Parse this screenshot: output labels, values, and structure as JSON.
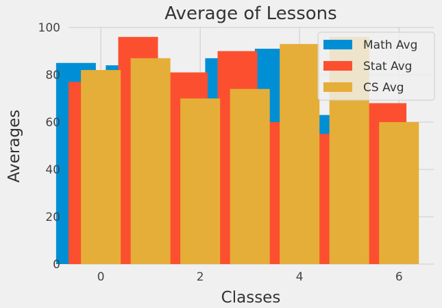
{
  "chart_data": {
    "type": "bar",
    "title": "Average of Lessons",
    "xlabel": "Classes",
    "ylabel": "Averages",
    "xlim": [
      -0.65,
      6.7
    ],
    "ylim": [
      0,
      100
    ],
    "xticks": [
      0,
      2,
      4,
      6
    ],
    "yticks": [
      0,
      20,
      40,
      60,
      80,
      100
    ],
    "bar_width": 0.8,
    "grid": true,
    "legend_position": "top-right",
    "series": [
      {
        "name": "Math Avg",
        "color": "#008fd5",
        "x": [
          0,
          1,
          2,
          3,
          4,
          5,
          6
        ],
        "values": [
          85,
          84,
          77,
          87,
          91,
          63,
          60
        ],
        "offset": -0.5
      },
      {
        "name": "Stat Avg",
        "color": "#fc4f30",
        "x": [
          0,
          1,
          2,
          3,
          4,
          5,
          6
        ],
        "values": [
          77,
          96,
          81,
          90,
          60,
          55,
          68
        ],
        "offset": -0.25
      },
      {
        "name": "CS Avg",
        "color": "#e5ae38",
        "x": [
          0,
          1,
          2,
          3,
          4,
          5,
          6
        ],
        "values": [
          82,
          87,
          70,
          74,
          93,
          96,
          60
        ],
        "offset": 0
      }
    ]
  }
}
